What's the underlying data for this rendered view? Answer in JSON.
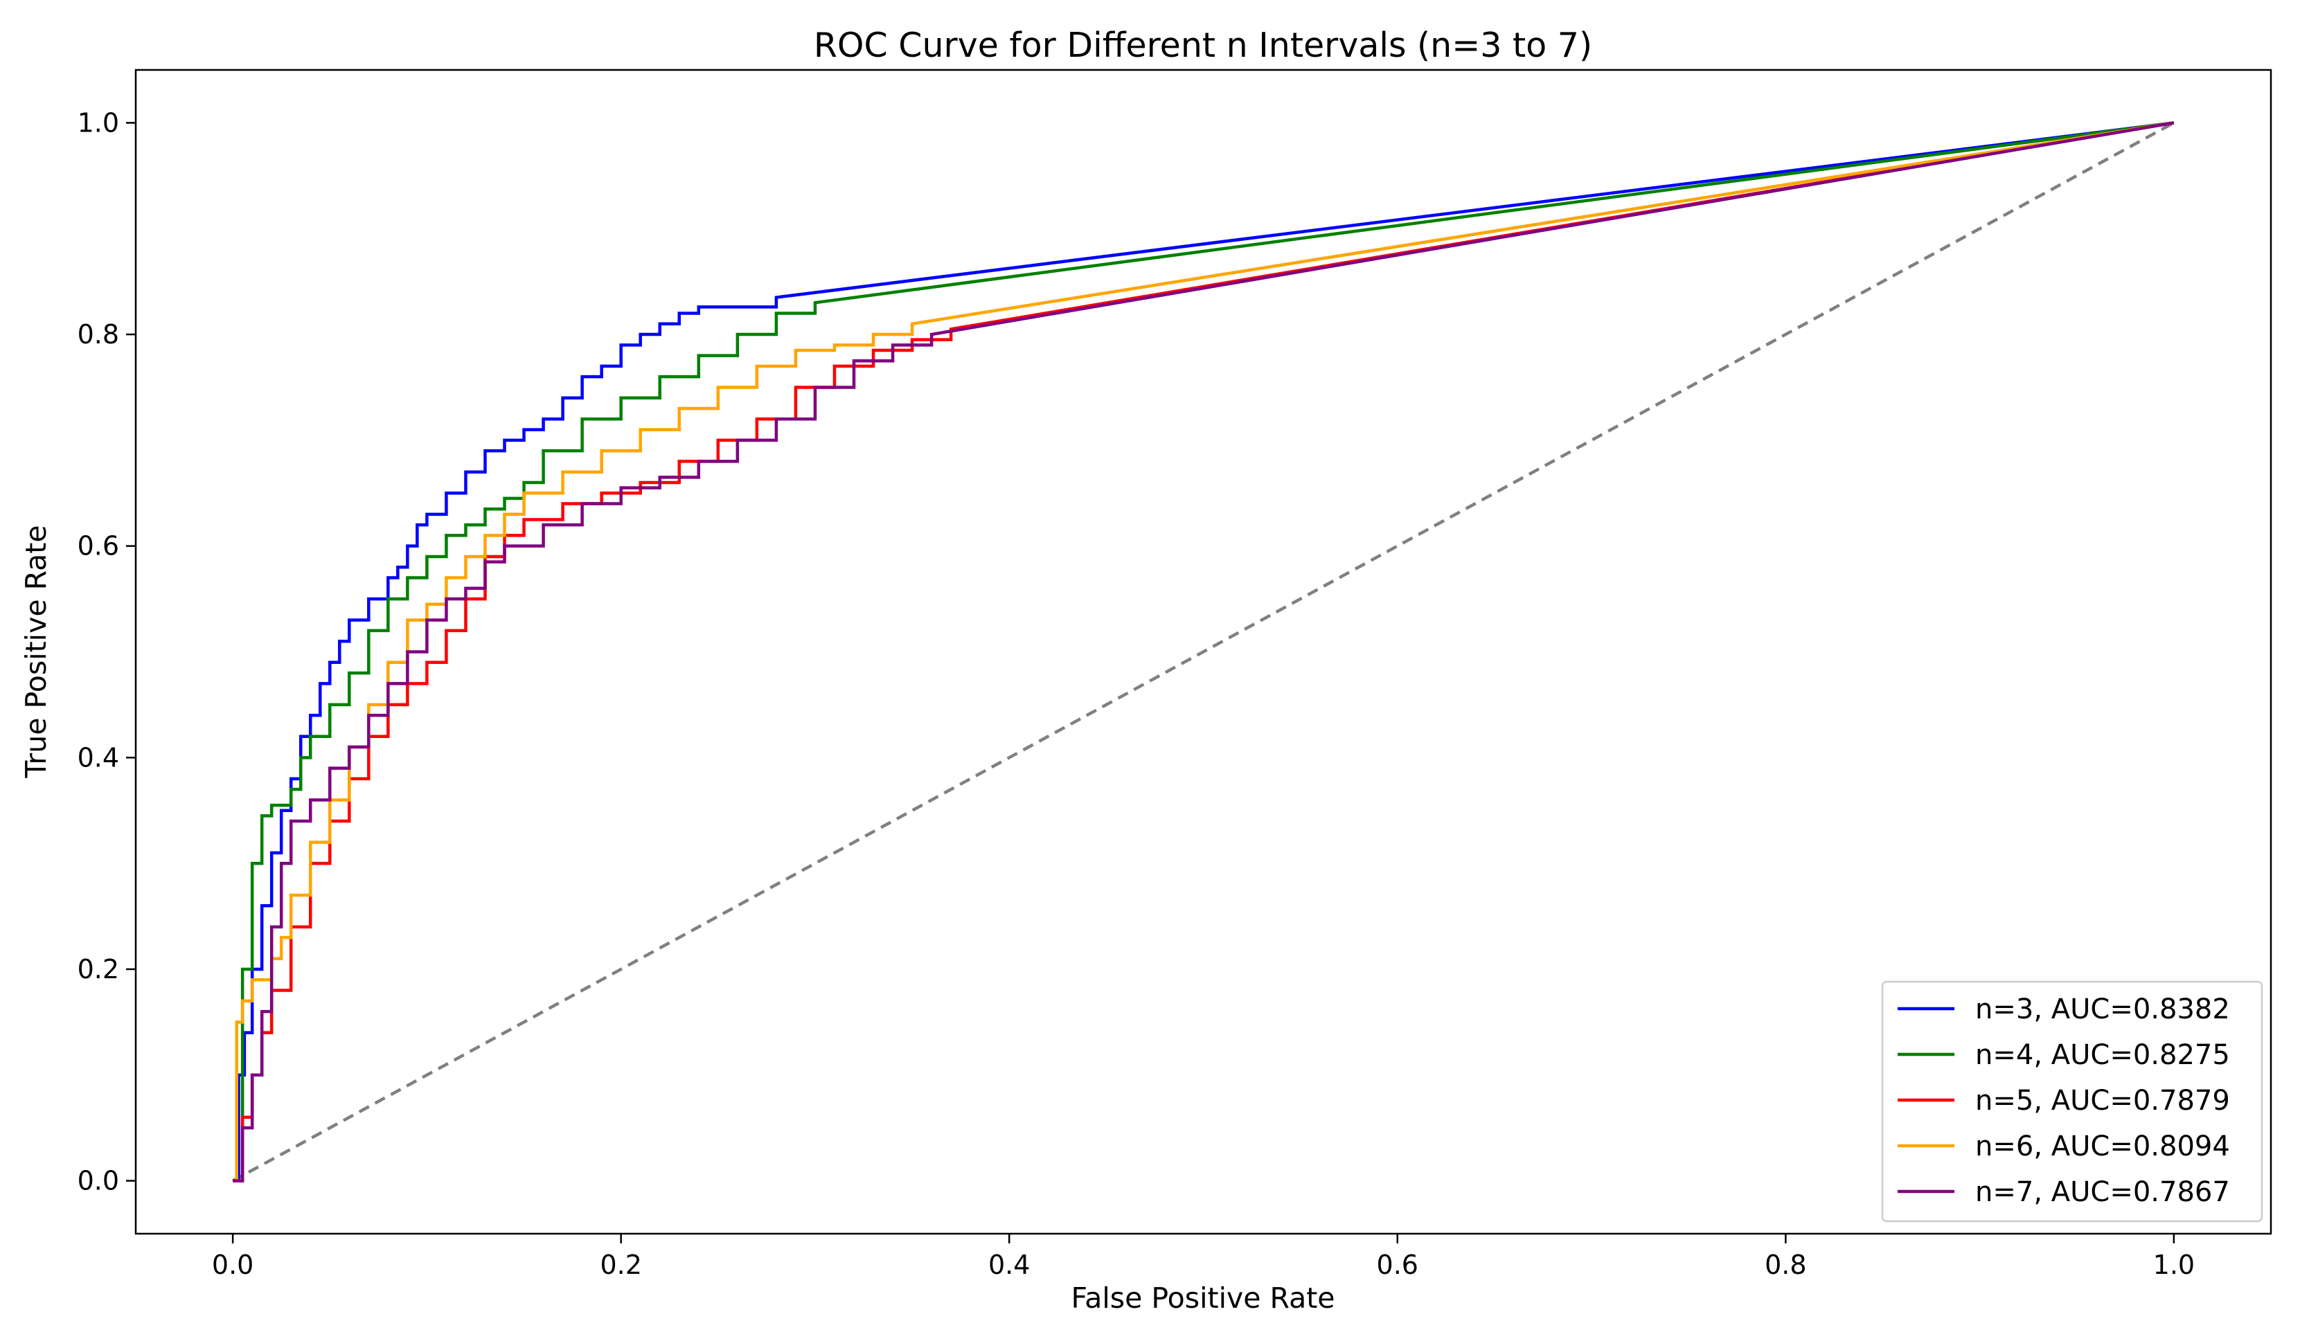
{
  "chart_data": {
    "type": "line",
    "title": "ROC Curve for Different n Intervals (n=3 to 7)",
    "xlabel": "False Positive Rate",
    "ylabel": "True Positive Rate",
    "xlim": [
      -0.05,
      1.05
    ],
    "ylim": [
      -0.05,
      1.05
    ],
    "xticks": [
      0.0,
      0.2,
      0.4,
      0.6,
      0.8,
      1.0
    ],
    "yticks": [
      0.0,
      0.2,
      0.4,
      0.6,
      0.8,
      1.0
    ],
    "xtick_labels": [
      "0.0",
      "0.2",
      "0.4",
      "0.6",
      "0.8",
      "1.0"
    ],
    "ytick_labels": [
      "0.0",
      "0.2",
      "0.4",
      "0.6",
      "0.8",
      "1.0"
    ],
    "grid": false,
    "legend_position": "lower-right",
    "reference_line": {
      "x": [
        0,
        1
      ],
      "y": [
        0,
        1
      ],
      "color": "#808080",
      "style": "dashed"
    },
    "series": [
      {
        "name": "n=3, AUC=0.8382",
        "color": "#0000ff",
        "x": [
          0,
          0.003,
          0.006,
          0.01,
          0.015,
          0.02,
          0.025,
          0.03,
          0.035,
          0.04,
          0.045,
          0.05,
          0.055,
          0.06,
          0.07,
          0.08,
          0.085,
          0.09,
          0.095,
          0.1,
          0.11,
          0.12,
          0.13,
          0.14,
          0.15,
          0.16,
          0.17,
          0.18,
          0.19,
          0.2,
          0.21,
          0.22,
          0.23,
          0.24,
          0.28,
          1.0
        ],
        "y": [
          0,
          0.1,
          0.14,
          0.2,
          0.26,
          0.31,
          0.35,
          0.38,
          0.42,
          0.44,
          0.47,
          0.49,
          0.51,
          0.53,
          0.55,
          0.57,
          0.58,
          0.6,
          0.62,
          0.63,
          0.65,
          0.67,
          0.69,
          0.7,
          0.71,
          0.72,
          0.74,
          0.76,
          0.77,
          0.79,
          0.8,
          0.81,
          0.82,
          0.826,
          0.835,
          1.0
        ]
      },
      {
        "name": "n=4, AUC=0.8275",
        "color": "#008000",
        "x": [
          0,
          0.005,
          0.01,
          0.015,
          0.02,
          0.03,
          0.035,
          0.04,
          0.05,
          0.06,
          0.07,
          0.08,
          0.09,
          0.1,
          0.11,
          0.12,
          0.13,
          0.14,
          0.15,
          0.16,
          0.18,
          0.2,
          0.22,
          0.24,
          0.26,
          0.28,
          0.3,
          1.0
        ],
        "y": [
          0,
          0.2,
          0.3,
          0.345,
          0.355,
          0.37,
          0.4,
          0.42,
          0.45,
          0.48,
          0.52,
          0.55,
          0.57,
          0.59,
          0.61,
          0.62,
          0.635,
          0.645,
          0.66,
          0.69,
          0.72,
          0.74,
          0.76,
          0.78,
          0.8,
          0.82,
          0.83,
          1.0
        ]
      },
      {
        "name": "n=5, AUC=0.7879",
        "color": "#ff0000",
        "x": [
          0,
          0.005,
          0.01,
          0.015,
          0.02,
          0.03,
          0.04,
          0.05,
          0.06,
          0.07,
          0.08,
          0.09,
          0.1,
          0.11,
          0.12,
          0.13,
          0.14,
          0.15,
          0.17,
          0.19,
          0.21,
          0.23,
          0.25,
          0.27,
          0.29,
          0.31,
          0.33,
          0.35,
          0.37,
          1.0
        ],
        "y": [
          0,
          0.06,
          0.1,
          0.14,
          0.18,
          0.24,
          0.3,
          0.34,
          0.38,
          0.42,
          0.45,
          0.47,
          0.49,
          0.52,
          0.55,
          0.59,
          0.61,
          0.625,
          0.64,
          0.65,
          0.66,
          0.68,
          0.7,
          0.72,
          0.75,
          0.77,
          0.785,
          0.795,
          0.805,
          1.0
        ]
      },
      {
        "name": "n=6, AUC=0.8094",
        "color": "#ffa500",
        "x": [
          0,
          0.002,
          0.005,
          0.01,
          0.02,
          0.025,
          0.03,
          0.04,
          0.05,
          0.06,
          0.07,
          0.08,
          0.09,
          0.1,
          0.11,
          0.12,
          0.13,
          0.14,
          0.15,
          0.17,
          0.19,
          0.21,
          0.23,
          0.25,
          0.27,
          0.29,
          0.31,
          0.33,
          0.35,
          1.0
        ],
        "y": [
          0,
          0.15,
          0.17,
          0.19,
          0.21,
          0.23,
          0.27,
          0.32,
          0.36,
          0.41,
          0.45,
          0.49,
          0.53,
          0.545,
          0.57,
          0.59,
          0.61,
          0.63,
          0.65,
          0.67,
          0.69,
          0.71,
          0.73,
          0.75,
          0.77,
          0.785,
          0.79,
          0.8,
          0.81,
          1.0
        ]
      },
      {
        "name": "n=7, AUC=0.7867",
        "color": "#800080",
        "x": [
          0,
          0.005,
          0.01,
          0.015,
          0.02,
          0.025,
          0.03,
          0.04,
          0.05,
          0.06,
          0.07,
          0.08,
          0.09,
          0.1,
          0.11,
          0.12,
          0.13,
          0.14,
          0.16,
          0.18,
          0.2,
          0.22,
          0.24,
          0.26,
          0.28,
          0.3,
          0.32,
          0.34,
          0.36,
          1.0
        ],
        "y": [
          0,
          0.05,
          0.1,
          0.16,
          0.24,
          0.3,
          0.34,
          0.36,
          0.39,
          0.41,
          0.44,
          0.47,
          0.5,
          0.53,
          0.55,
          0.56,
          0.585,
          0.6,
          0.62,
          0.64,
          0.655,
          0.665,
          0.68,
          0.7,
          0.72,
          0.75,
          0.775,
          0.79,
          0.8,
          1.0
        ]
      }
    ]
  }
}
